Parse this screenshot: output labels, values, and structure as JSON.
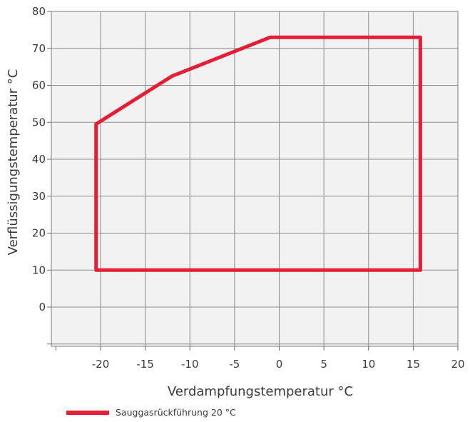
{
  "chart_data": {
    "type": "line",
    "title": "",
    "xlabel": "Verdampfungstemperatur °C",
    "ylabel": "Verflüssigungstemperatur °C",
    "xlim": [
      -25,
      20
    ],
    "ylim": [
      -10,
      80
    ],
    "grid": true,
    "x_ticks": [
      -20,
      -15,
      -10,
      -5,
      0,
      5,
      10,
      15,
      20
    ],
    "x_tick_labels": [
      "-20",
      "-15",
      "-10",
      "-5",
      "0",
      "5",
      "10",
      "15",
      "20"
    ],
    "y_ticks": [
      0,
      10,
      20,
      30,
      40,
      50,
      60,
      70,
      80
    ],
    "y_tick_labels": [
      "0",
      "10",
      "20",
      "30",
      "40",
      "50",
      "60",
      "70",
      "80"
    ],
    "legend_position": "bottom-left",
    "series": [
      {
        "name": "Sauggasrückführung 20 °C",
        "color": "#e41f35",
        "closed": true,
        "x": [
          -20.5,
          -20.5,
          -12,
          -1,
          15.8,
          15.8
        ],
        "y": [
          10,
          49.5,
          62.5,
          73,
          73,
          10
        ]
      }
    ]
  }
}
